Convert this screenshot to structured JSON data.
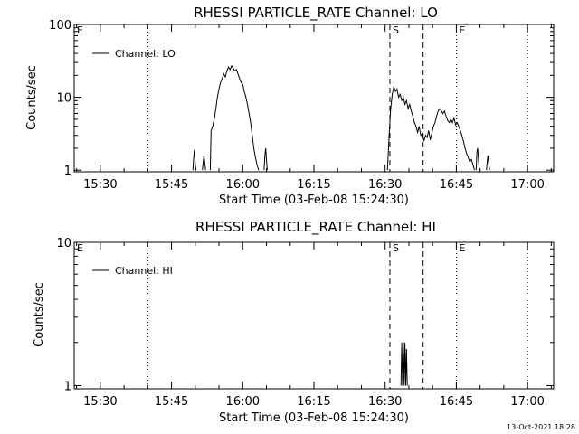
{
  "footer": {
    "timestamp": "13-Oct-2021 18:28"
  },
  "chart_data": [
    {
      "type": "line",
      "title": "RHESSI PARTICLE_RATE Channel: LO",
      "xlabel": "Start Time (03-Feb-08 15:24:30)",
      "ylabel": "Counts/sec",
      "y_scale": "log",
      "ylim": [
        0.95,
        100
      ],
      "y_ticks": [
        1,
        10,
        100
      ],
      "y_tick_labels": [
        "1",
        "10",
        "100"
      ],
      "xlim": [
        "15:24:30",
        "17:05:30"
      ],
      "x_ticks": [
        "15:30",
        "15:45",
        "16:00",
        "16:15",
        "16:30",
        "16:45",
        "17:00"
      ],
      "grid": false,
      "legend": {
        "position": "top-left",
        "entries": [
          "Channel: LO"
        ]
      },
      "event_markers": [
        {
          "label": "E",
          "time": "15:24:30",
          "style": "solid"
        },
        {
          "label": "",
          "time": "15:40:00",
          "style": "dotted"
        },
        {
          "label": "S",
          "time": "16:31:00",
          "style": "dashed"
        },
        {
          "label": "",
          "time": "16:38:00",
          "style": "dashed"
        },
        {
          "label": "E",
          "time": "16:45:00",
          "style": "dotted"
        },
        {
          "label": "",
          "time": "17:00:00",
          "style": "dotted"
        }
      ],
      "series": [
        {
          "name": "Channel: LO",
          "segments": [
            {
              "x": [
                "15:49:30",
                "15:49:40",
                "15:49:50",
                "15:50:00",
                "15:50:10"
              ],
              "y": [
                1,
                1.5,
                1.9,
                1.2,
                1
              ]
            },
            {
              "x": [
                "15:51:30",
                "15:51:40",
                "15:51:50",
                "15:52:00",
                "15:52:10"
              ],
              "y": [
                1,
                1.3,
                1.6,
                1.3,
                1
              ]
            },
            {
              "x": [
                "15:53:10",
                "15:53:20",
                "15:53:40",
                "15:54:00",
                "15:54:20",
                "15:54:40",
                "15:55:00",
                "15:55:20",
                "15:55:40",
                "15:56:00",
                "15:56:20",
                "15:56:40",
                "15:57:00",
                "15:57:20",
                "15:57:40",
                "15:58:00",
                "15:58:20",
                "15:58:40",
                "15:59:00",
                "15:59:20",
                "15:59:40",
                "16:00:00",
                "16:00:20",
                "16:00:40",
                "16:01:00",
                "16:01:20",
                "16:01:40",
                "16:02:00",
                "16:02:20",
                "16:02:40",
                "16:03:00",
                "16:03:20"
              ],
              "y": [
                1,
                3.5,
                4,
                5,
                7,
                10,
                13,
                16,
                18,
                21,
                19,
                23,
                26,
                24,
                27,
                25,
                23,
                24,
                21,
                18,
                16,
                15,
                12,
                10,
                8,
                6,
                4.5,
                3,
                2,
                1.5,
                1.2,
                1
              ]
            },
            {
              "x": [
                "16:04:30",
                "16:04:40",
                "16:04:50",
                "16:05:00",
                "16:05:10"
              ],
              "y": [
                1,
                1.6,
                2,
                1.4,
                1
              ]
            },
            {
              "x": [
                "16:30:30",
                "16:30:50",
                "16:31:10",
                "16:31:30",
                "16:31:50",
                "16:32:10",
                "16:32:30",
                "16:32:50",
                "16:33:10",
                "16:33:30",
                "16:33:50",
                "16:34:10",
                "16:34:30",
                "16:34:50",
                "16:35:10",
                "16:35:30",
                "16:35:50",
                "16:36:10",
                "16:36:30",
                "16:36:50",
                "16:37:10",
                "16:37:30",
                "16:37:50",
                "16:38:10",
                "16:38:30",
                "16:38:50",
                "16:39:10",
                "16:39:30",
                "16:39:50",
                "16:40:10",
                "16:40:30",
                "16:40:50",
                "16:41:10",
                "16:41:30",
                "16:41:50",
                "16:42:10",
                "16:42:30",
                "16:42:50",
                "16:43:10",
                "16:43:30",
                "16:43:50",
                "16:44:10",
                "16:44:30",
                "16:44:50",
                "16:45:10",
                "16:45:30",
                "16:45:50",
                "16:46:10",
                "16:46:30",
                "16:46:50",
                "16:47:10",
                "16:47:30",
                "16:47:50",
                "16:48:10",
                "16:48:30",
                "16:48:50"
              ],
              "y": [
                1,
                3,
                7,
                11,
                14,
                12,
                13,
                10,
                11,
                9,
                10,
                8,
                9,
                7,
                8,
                6.5,
                5.5,
                4.5,
                4,
                3.3,
                4,
                3,
                3.2,
                2.5,
                3,
                2.8,
                3.5,
                2.6,
                3.2,
                4,
                4.5,
                5.5,
                6.5,
                7,
                6.5,
                6,
                6.5,
                5.5,
                4.8,
                4.5,
                5,
                4.5,
                5.2,
                4.2,
                4.5,
                4,
                3.5,
                3,
                2.5,
                2,
                1.7,
                1.5,
                1.3,
                1.4,
                1.2,
                1
              ]
            },
            {
              "x": [
                "16:49:10",
                "16:49:20",
                "16:49:30",
                "16:49:40",
                "16:49:50"
              ],
              "y": [
                1,
                1.8,
                2,
                1.4,
                1
              ]
            },
            {
              "x": [
                "16:51:20",
                "16:51:30",
                "16:51:40",
                "16:51:50",
                "16:52:00"
              ],
              "y": [
                1,
                1.3,
                1.6,
                1.2,
                1
              ]
            }
          ]
        }
      ]
    },
    {
      "type": "line",
      "title": "RHESSI PARTICLE_RATE Channel: HI",
      "xlabel": "Start Time (03-Feb-08 15:24:30)",
      "ylabel": "Counts/sec",
      "y_scale": "log",
      "ylim": [
        0.95,
        10
      ],
      "y_ticks": [
        1,
        10
      ],
      "y_tick_labels": [
        "1",
        "10"
      ],
      "xlim": [
        "15:24:30",
        "17:05:30"
      ],
      "x_ticks": [
        "15:30",
        "15:45",
        "16:00",
        "16:15",
        "16:30",
        "16:45",
        "17:00"
      ],
      "grid": false,
      "legend": {
        "position": "top-left",
        "entries": [
          "Channel: HI"
        ]
      },
      "event_markers": [
        {
          "label": "E",
          "time": "15:24:30",
          "style": "solid"
        },
        {
          "label": "",
          "time": "15:40:00",
          "style": "dotted"
        },
        {
          "label": "S",
          "time": "16:31:00",
          "style": "dashed"
        },
        {
          "label": "",
          "time": "16:38:00",
          "style": "dashed"
        },
        {
          "label": "E",
          "time": "16:45:00",
          "style": "dotted"
        },
        {
          "label": "",
          "time": "17:00:00",
          "style": "dotted"
        }
      ],
      "series": [
        {
          "name": "Channel: HI",
          "segments": [
            {
              "x": [
                "16:33:20",
                "16:33:30",
                "16:33:40",
                "16:33:50",
                "16:34:00",
                "16:34:10",
                "16:34:20",
                "16:34:30",
                "16:34:40"
              ],
              "y": [
                1,
                2,
                1,
                2,
                1,
                2,
                1,
                1.8,
                1
              ]
            }
          ]
        }
      ]
    }
  ]
}
